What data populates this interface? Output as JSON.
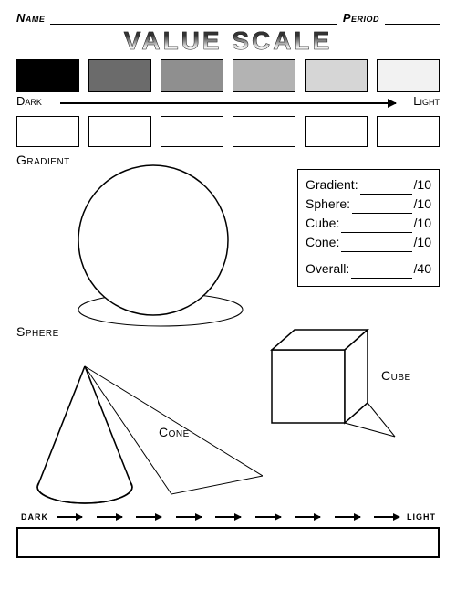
{
  "header": {
    "name_label": "Name",
    "period_label": "Period"
  },
  "title": "VALUE SCALE",
  "value_scale": {
    "swatches": [
      "#000000",
      "#6b6b6b",
      "#8f8f8f",
      "#b3b3b3",
      "#d6d6d6",
      "#f2f2f2"
    ],
    "dark_label": "Dark",
    "light_label": "Light",
    "practice_count": 6
  },
  "gradient_label": "Gradient",
  "scorebox": {
    "lines": [
      {
        "label": "Gradient:",
        "denom": "/10"
      },
      {
        "label": "Sphere:",
        "denom": "/10"
      },
      {
        "label": "Cube:",
        "denom": "/10"
      },
      {
        "label": "Cone:",
        "denom": "/10"
      }
    ],
    "overall": {
      "label": "Overall:",
      "denom": "/40"
    }
  },
  "shapes": {
    "sphere_label": "Sphere",
    "cube_label": "Cube",
    "cone_label": "Cone"
  },
  "bottom": {
    "dark_label": "DARK",
    "light_label": "LIGHT",
    "arrow_count": 9
  },
  "style": {
    "stroke": "#000000",
    "bg": "#ffffff"
  }
}
